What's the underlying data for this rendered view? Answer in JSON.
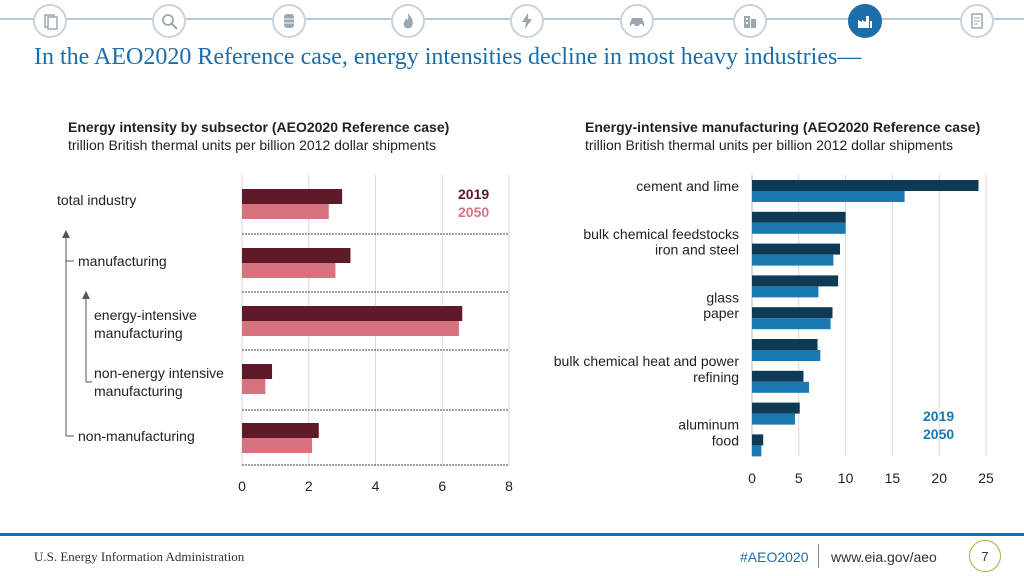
{
  "header": {
    "title": "In the AEO2020 Reference case, energy intensities decline in most heavy industries—",
    "nav_icons": [
      "documents-icon",
      "magnifier-icon",
      "barrel-icon",
      "flame-icon",
      "lightning-icon",
      "car-icon",
      "buildings-icon",
      "factory-icon",
      "report-icon"
    ]
  },
  "chart_data": [
    {
      "type": "bar",
      "orientation": "horizontal",
      "title": "Energy intensity by subsector (AEO2020 Reference case)",
      "subtitle": "trillion British thermal units per billion 2012 dollar shipments",
      "categories": [
        "total industry",
        "manufacturing",
        "energy-intensive manufacturing",
        "non-energy intensive manufacturing",
        "non-manufacturing"
      ],
      "series": [
        {
          "name": "2019",
          "color": "#5e1a28",
          "values": [
            3.0,
            3.25,
            6.6,
            0.9,
            2.3
          ]
        },
        {
          "name": "2050",
          "color": "#d9727f",
          "values": [
            2.6,
            2.8,
            6.5,
            0.7,
            2.1
          ]
        }
      ],
      "xlim": [
        0,
        8
      ],
      "xticks": [
        0,
        2,
        4,
        6,
        8
      ],
      "legend": "top-right",
      "hierarchy": [
        "top",
        "level1",
        "level2",
        "level2",
        "level1"
      ]
    },
    {
      "type": "bar",
      "orientation": "horizontal",
      "title": "Energy-intensive manufacturing (AEO2020 Reference case)",
      "subtitle": "trillion British thermal units per billion 2012 dollar shipments",
      "categories": [
        "cement and lime",
        "bulk chemical feedstocks",
        "iron and steel",
        "glass",
        "paper",
        "bulk chemical heat and power",
        "refining",
        "aluminum",
        "food"
      ],
      "series": [
        {
          "name": "2019",
          "color": "#0e3a56",
          "values": [
            24.2,
            10.0,
            9.4,
            9.2,
            8.6,
            7.0,
            5.5,
            5.1,
            1.2
          ]
        },
        {
          "name": "2050",
          "color": "#1a79b0",
          "values": [
            16.3,
            10.0,
            8.7,
            7.1,
            8.4,
            7.3,
            6.1,
            4.6,
            1.0
          ]
        }
      ],
      "xlim": [
        0,
        25
      ],
      "xticks": [
        0,
        5,
        10,
        15,
        20,
        25
      ],
      "legend": "bottom-right"
    }
  ],
  "footer": {
    "source": "U.S. Energy Information Administration",
    "hashtag": "#AEO2020",
    "url": "www.eia.gov/aeo",
    "page": "7"
  }
}
